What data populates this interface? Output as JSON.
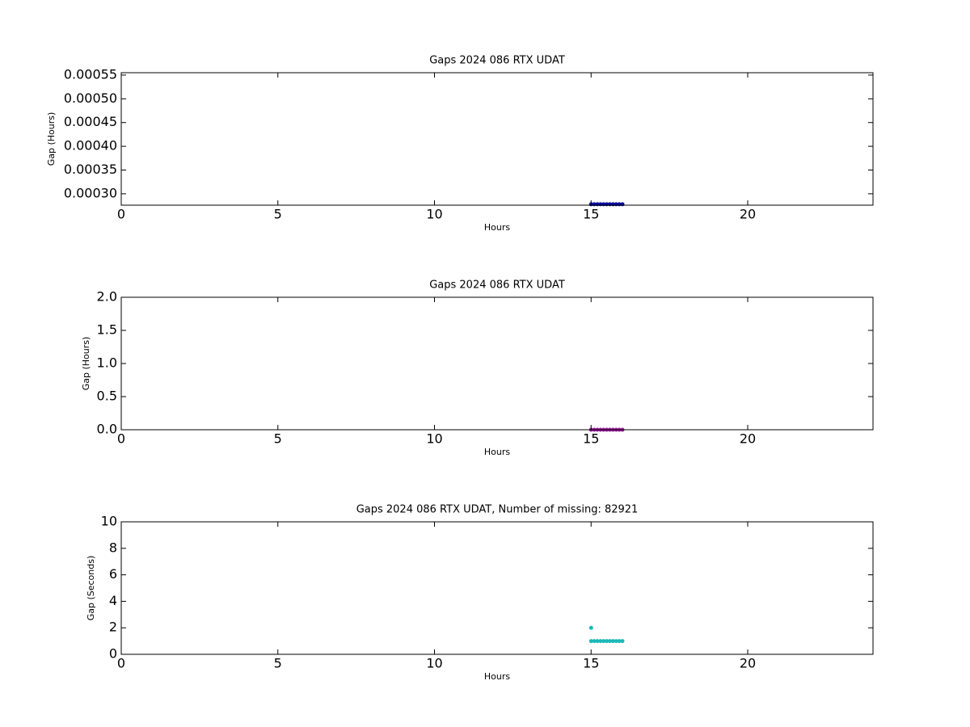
{
  "chart_data": [
    {
      "type": "scatter",
      "title": "Gaps 2024 086 RTX  UDAT",
      "xlabel": "Hours",
      "ylabel": "Gap (Hours)",
      "xlim": [
        0,
        24
      ],
      "xticks": [
        0,
        5,
        10,
        15,
        20
      ],
      "ylim": [
        0.000276,
        0.000555
      ],
      "yticks": [
        {
          "value": 0.0003,
          "label": "0.00030"
        },
        {
          "value": 0.00035,
          "label": "0.00035"
        },
        {
          "value": 0.0004,
          "label": "0.00040"
        },
        {
          "value": 0.00045,
          "label": "0.00045"
        },
        {
          "value": 0.0005,
          "label": "0.00050"
        },
        {
          "value": 0.00055,
          "label": "0.00055"
        }
      ],
      "color": "#0a0aa0",
      "x": [
        15,
        15.1,
        15.2,
        15.3,
        15.4,
        15.5,
        15.6,
        15.7,
        15.8,
        15.9,
        16
      ],
      "values": [
        0.000278,
        0.000278,
        0.000278,
        0.000278,
        0.000278,
        0.000278,
        0.000278,
        0.000278,
        0.000278,
        0.000278,
        0.000278
      ]
    },
    {
      "type": "scatter",
      "title": "Gaps 2024 086 RTX  UDAT",
      "xlabel": "Hours",
      "ylabel": "Gap (Hours)",
      "xlim": [
        0,
        24
      ],
      "xticks": [
        0,
        5,
        10,
        15,
        20
      ],
      "ylim": [
        0,
        2
      ],
      "yticks": [
        {
          "value": 0,
          "label": "0.0"
        },
        0.5,
        {
          "value": 1,
          "label": "1.0"
        },
        1.5,
        {
          "value": 2,
          "label": "2.0"
        }
      ],
      "color": "#9b1b9b",
      "x": [
        15,
        15.1,
        15.2,
        15.3,
        15.4,
        15.5,
        15.6,
        15.7,
        15.8,
        15.9,
        16
      ],
      "values": [
        0.000278,
        0.000278,
        0.000278,
        0.000278,
        0.000278,
        0.000278,
        0.000278,
        0.000278,
        0.000278,
        0.000278,
        0.000278
      ]
    },
    {
      "type": "scatter",
      "title": "Gaps 2024 086 RTX  UDAT, Number of missing: 82921",
      "xlabel": "Hours",
      "ylabel": "Gap (Seconds)",
      "xlim": [
        0,
        24
      ],
      "xticks": [
        0,
        5,
        10,
        15,
        20
      ],
      "ylim": [
        0,
        10
      ],
      "yticks": [
        0,
        2,
        4,
        6,
        8,
        10
      ],
      "color": "#1cb8b8",
      "x": [
        15,
        15,
        15.1,
        15.2,
        15.3,
        15.4,
        15.5,
        15.6,
        15.7,
        15.8,
        15.9,
        16
      ],
      "values": [
        2,
        1,
        1,
        1,
        1,
        1,
        1,
        1,
        1,
        1,
        1,
        1
      ]
    }
  ]
}
